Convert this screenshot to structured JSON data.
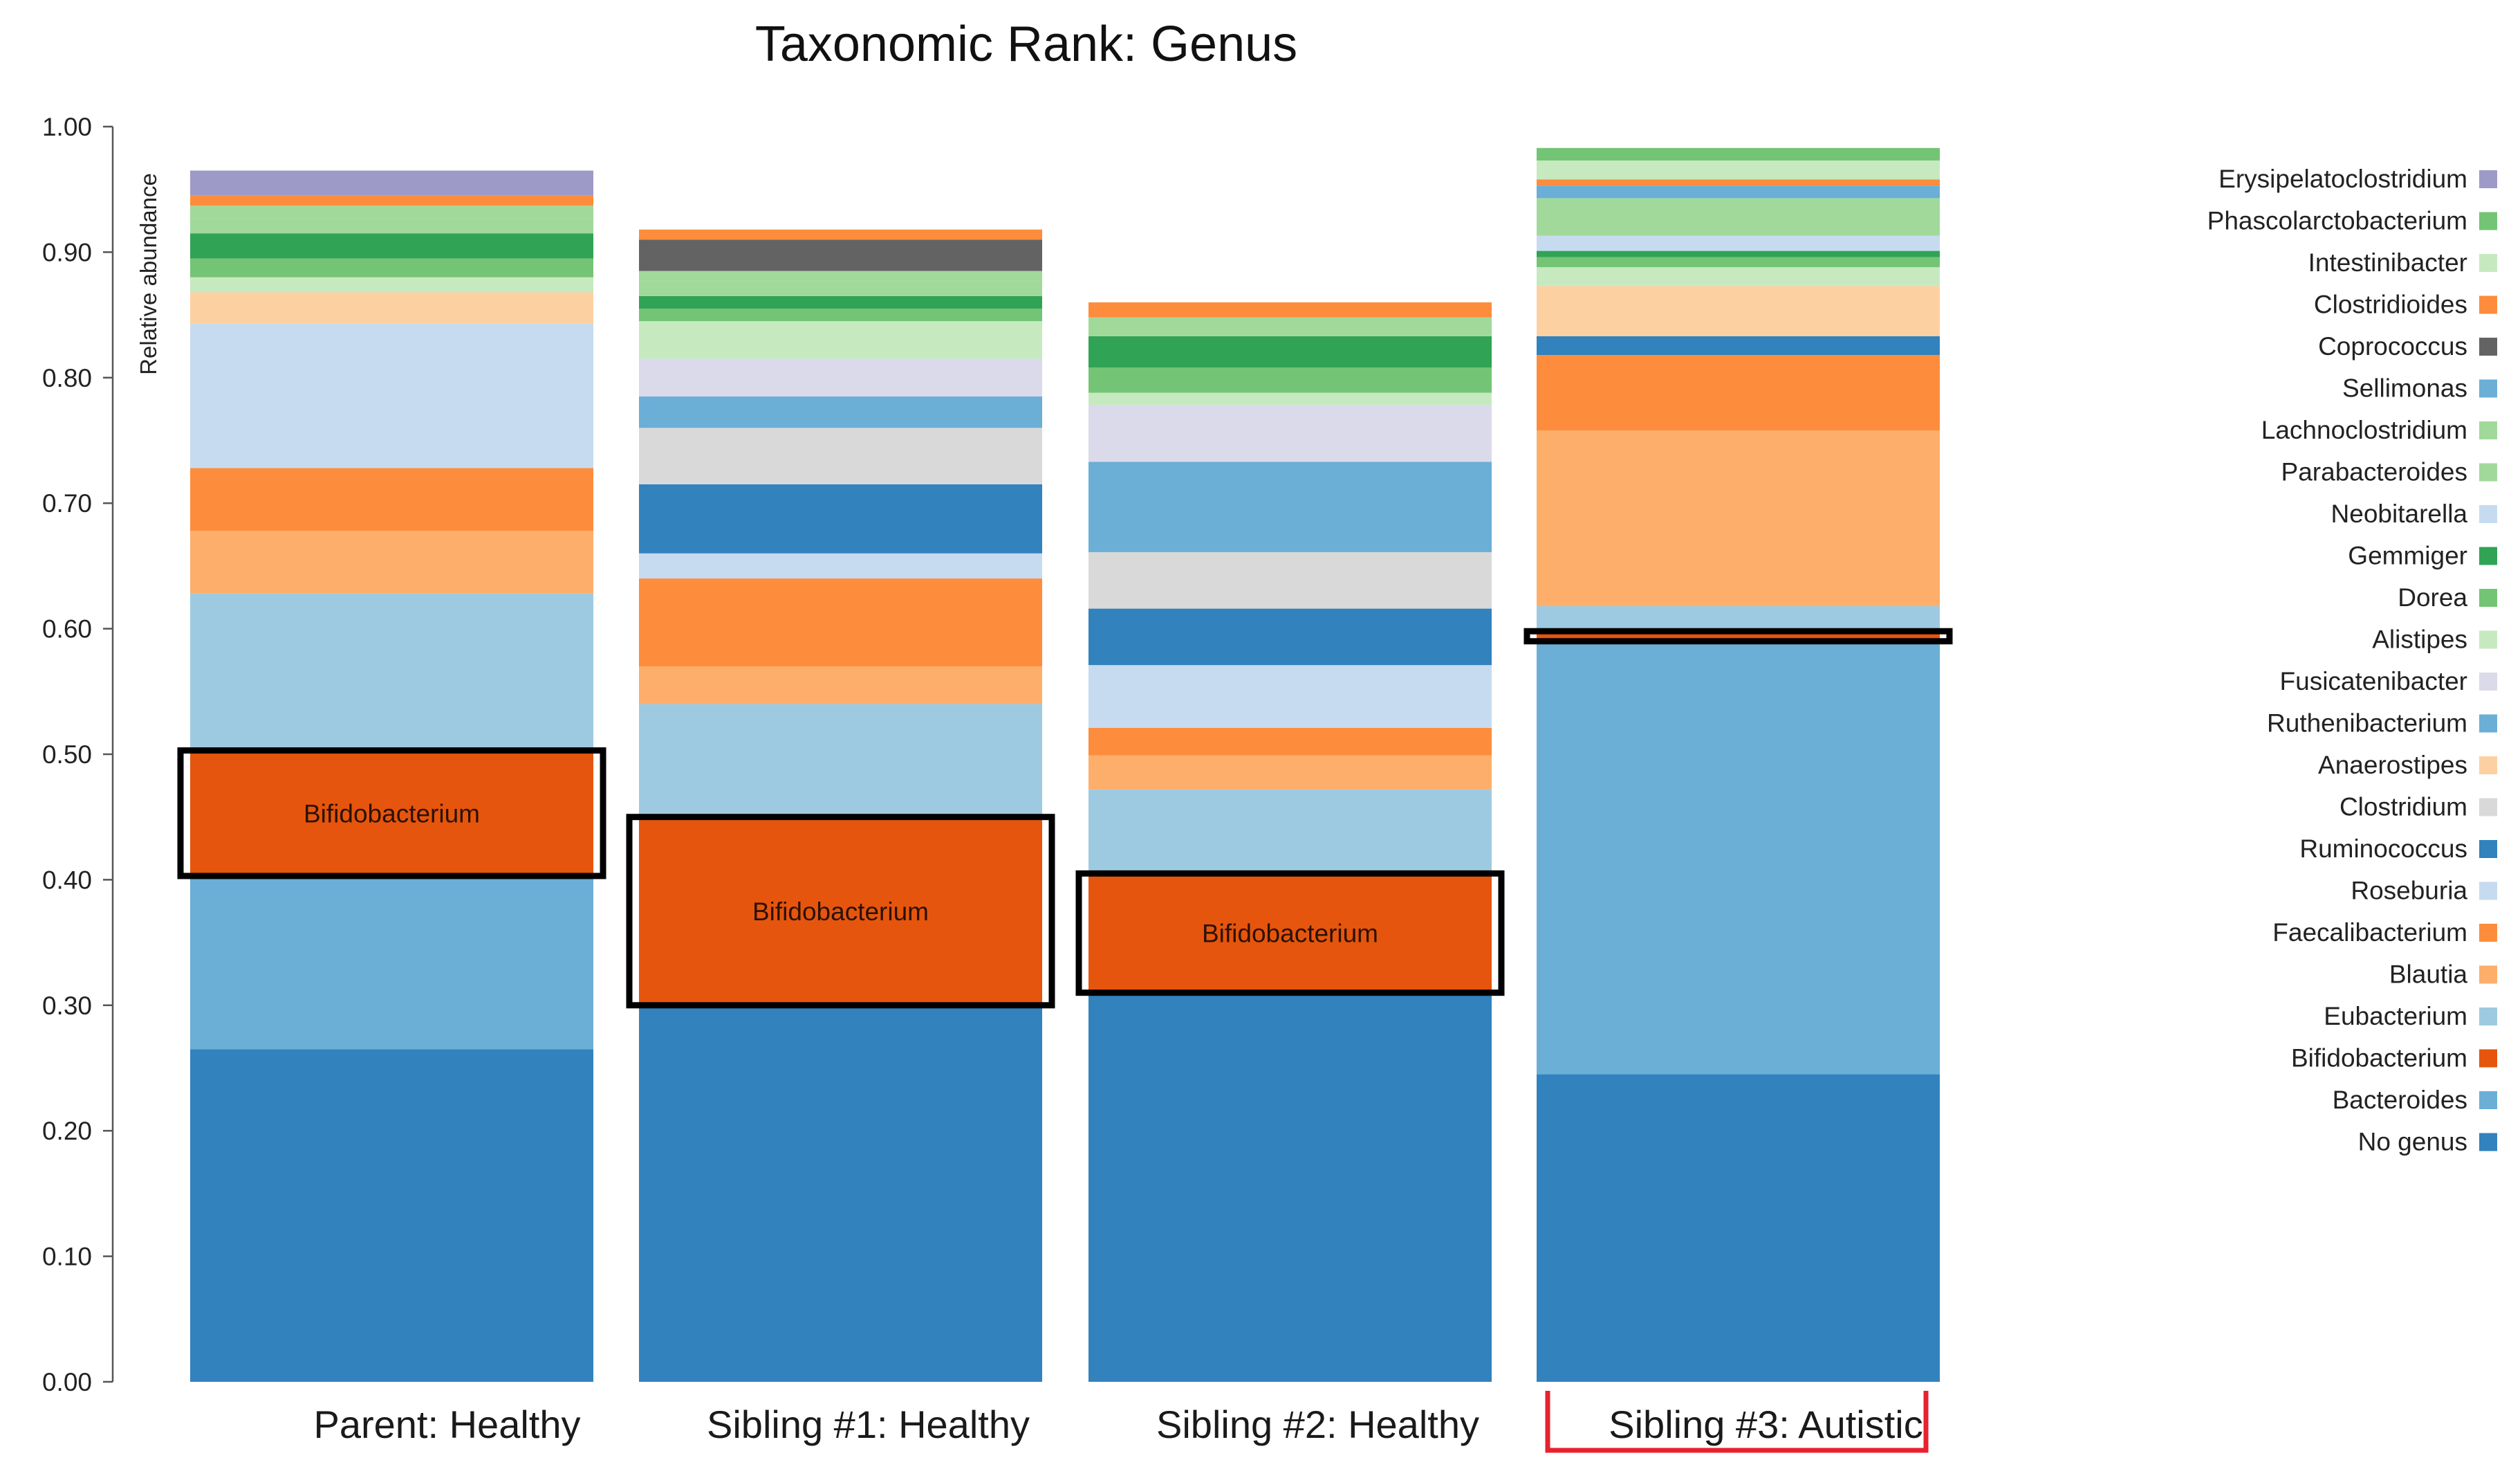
{
  "chart_data": {
    "type": "bar",
    "stacked": true,
    "title": "Taxonomic Rank: Genus",
    "ylabel": "Relative abundance",
    "xlabel": "",
    "ylim": [
      0,
      1
    ],
    "yticks": [
      "0.00",
      "0.10",
      "0.20",
      "0.30",
      "0.40",
      "0.50",
      "0.60",
      "0.70",
      "0.80",
      "0.90",
      "1.00"
    ],
    "categories": [
      "Parent: Healthy",
      "Sibling #1: Healthy",
      "Sibling #2: Healthy",
      "Sibling #3: Autistic"
    ],
    "highlighted_category": "Sibling #3: Autistic",
    "highlight_color": "#e8212e",
    "boxed_series": "Bifidobacterium",
    "legend_position": "right",
    "grid": false,
    "series": [
      {
        "name": "No genus",
        "color": "#3182bd",
        "values": [
          0.265,
          0.3,
          0.31,
          0.245
        ]
      },
      {
        "name": "Bacteroides",
        "color": "#6baed6",
        "values": [
          0.138,
          0.0,
          0.0,
          0.345
        ]
      },
      {
        "name": "Bifidobacterium",
        "color": "#e6550d",
        "values": [
          0.1,
          0.15,
          0.095,
          0.008
        ]
      },
      {
        "name": "Eubacterium",
        "color": "#9ecae1",
        "values": [
          0.125,
          0.09,
          0.067,
          0.02
        ]
      },
      {
        "name": "Blautia",
        "color": "#fdae6b",
        "values": [
          0.05,
          0.03,
          0.027,
          0.14
        ]
      },
      {
        "name": "Faecalibacterium",
        "color": "#fd8d3c",
        "values": [
          0.05,
          0.07,
          0.022,
          0.06
        ]
      },
      {
        "name": "Roseburia",
        "color": "#c6dbef",
        "values": [
          0.115,
          0.02,
          0.05,
          0.0
        ]
      },
      {
        "name": "Ruminococcus",
        "color": "#3182bd",
        "values": [
          0.0,
          0.055,
          0.045,
          0.015
        ]
      },
      {
        "name": "Clostridium",
        "color": "#d9d9d9",
        "values": [
          0.0,
          0.045,
          0.045,
          0.0
        ]
      },
      {
        "name": "Anaerostipes",
        "color": "#fdd0a2",
        "values": [
          0.025,
          0.0,
          0.0,
          0.04
        ]
      },
      {
        "name": "Ruthenibacterium",
        "color": "#6baed6",
        "values": [
          0.0,
          0.025,
          0.072,
          0.0
        ]
      },
      {
        "name": "Fusicatenibacter",
        "color": "#dadaeb",
        "values": [
          0.0,
          0.03,
          0.045,
          0.0
        ]
      },
      {
        "name": "Alistipes",
        "color": "#c7e9c0",
        "values": [
          0.012,
          0.03,
          0.01,
          0.015
        ]
      },
      {
        "name": "Dorea",
        "color": "#74c476",
        "values": [
          0.015,
          0.01,
          0.02,
          0.008
        ]
      },
      {
        "name": "Gemmiger",
        "color": "#31a354",
        "values": [
          0.02,
          0.01,
          0.025,
          0.005
        ]
      },
      {
        "name": "Neobitarella",
        "color": "#c6dbef",
        "values": [
          0.0,
          0.0,
          0.0,
          0.012
        ]
      },
      {
        "name": "Parabacteroides",
        "color": "#a1d99b",
        "values": [
          0.012,
          0.012,
          0.015,
          0.03
        ]
      },
      {
        "name": "Lachnoclostridium",
        "color": "#a1d99b",
        "values": [
          0.01,
          0.008,
          0.0,
          0.0
        ]
      },
      {
        "name": "Sellimonas",
        "color": "#6baed6",
        "values": [
          0.0,
          0.0,
          0.0,
          0.01
        ]
      },
      {
        "name": "Coprococcus",
        "color": "#636363",
        "values": [
          0.0,
          0.025,
          0.0,
          0.0
        ]
      },
      {
        "name": "Clostridioides",
        "color": "#fd8d3c",
        "values": [
          0.008,
          0.008,
          0.012,
          0.005
        ]
      },
      {
        "name": "Intestinibacter",
        "color": "#c7e9c0",
        "values": [
          0.0,
          0.0,
          0.0,
          0.015
        ]
      },
      {
        "name": "Phascolarctobacterium",
        "color": "#74c476",
        "values": [
          0.0,
          0.0,
          0.0,
          0.01
        ]
      },
      {
        "name": "Erysipelatoclostridium",
        "color": "#9e9ac8",
        "values": [
          0.02,
          0.0,
          0.0,
          0.0
        ]
      }
    ]
  }
}
